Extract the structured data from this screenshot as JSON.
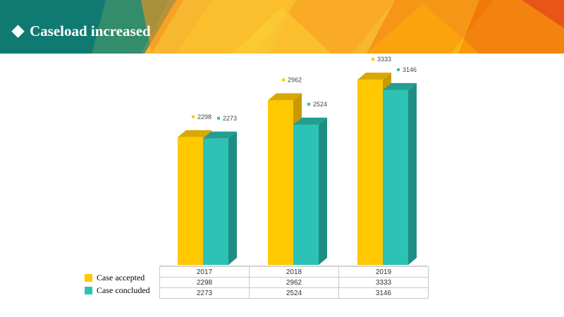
{
  "slide": {
    "title": "Caseload increased"
  },
  "colors": {
    "banner_teal": "#0E7A72",
    "banner_orange": "#F7931E",
    "accepted": "#FFC800",
    "concluded": "#2CC3B5"
  },
  "legend": [
    {
      "name": "Case accepted",
      "color": "#FFC800"
    },
    {
      "name": "Case concluded",
      "color": "#2CC3B5"
    }
  ],
  "chart_data": {
    "type": "bar",
    "categories": [
      "2017",
      "2018",
      "2019"
    ],
    "series": [
      {
        "name": "Case accepted",
        "values": [
          2298,
          2962,
          3333
        ]
      },
      {
        "name": "Case concluded",
        "values": [
          2273,
          2524,
          3146
        ]
      }
    ],
    "data_table": [
      [
        "2298",
        "2962",
        "3333"
      ],
      [
        "2273",
        "2524",
        "3146"
      ]
    ],
    "value_labels": [
      [
        "2298",
        "2962",
        "3333"
      ],
      [
        "2273",
        "2524",
        "3146"
      ]
    ],
    "title": "",
    "xlabel": "",
    "ylabel": "",
    "ylim": [
      0,
      3500
    ],
    "style": "3d-column",
    "grid": false
  }
}
